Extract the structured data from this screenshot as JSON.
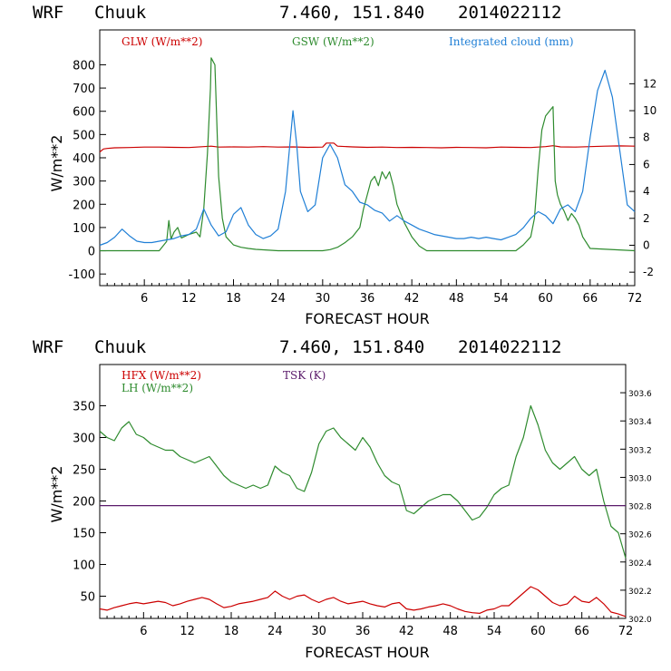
{
  "header_top": {
    "model": "WRF",
    "station": "Chuuk",
    "coords": "7.460, 151.840",
    "datetime": "2014022112"
  },
  "header_bottom": {
    "model": "WRF",
    "station": "Chuuk",
    "coords": "7.460, 151.840",
    "datetime": "2014022112"
  },
  "colors": {
    "red": "#cc0000",
    "green": "#2e8b2e",
    "blue": "#1f7fd6",
    "purple": "#5a1a6a"
  },
  "chart_data": [
    {
      "type": "line",
      "xlabel": "FORECAST HOUR",
      "ylabel": "W/m**2",
      "xlim": [
        0,
        72
      ],
      "ylim": [
        -150,
        950
      ],
      "y2lim": [
        -3,
        16
      ],
      "xticks": [
        6,
        12,
        18,
        24,
        30,
        36,
        42,
        48,
        54,
        60,
        66,
        72
      ],
      "yticks": [
        -100,
        0,
        100,
        200,
        300,
        400,
        500,
        600,
        700,
        800
      ],
      "y2ticks": [
        -2,
        0,
        2,
        4,
        6,
        8,
        10,
        12
      ],
      "series": [
        {
          "name": "GLW (W/m**2)",
          "color": "#cc0000",
          "axis": "left",
          "x": [
            0,
            0.5,
            1,
            2,
            4,
            6,
            8,
            10,
            12,
            13,
            14,
            15,
            16,
            18,
            20,
            22,
            24,
            26,
            28,
            30,
            30.5,
            31.5,
            32,
            34,
            36,
            38,
            40,
            42,
            44,
            46,
            48,
            50,
            52,
            54,
            56,
            58,
            60,
            61,
            62,
            64,
            66,
            68,
            70,
            72
          ],
          "y": [
            425,
            438,
            440,
            443,
            444,
            446,
            446,
            445,
            444,
            446,
            448,
            450,
            446,
            447,
            446,
            448,
            446,
            447,
            445,
            446,
            463,
            463,
            450,
            447,
            445,
            446,
            444,
            445,
            444,
            443,
            445,
            444,
            443,
            446,
            445,
            444,
            448,
            452,
            447,
            446,
            448,
            450,
            451,
            450
          ]
        },
        {
          "name": "GSW (W/m**2)",
          "color": "#2e8b2e",
          "axis": "left",
          "x": [
            0,
            8,
            9,
            9.3,
            9.6,
            10,
            10.5,
            11,
            12,
            13,
            13.5,
            14,
            14.5,
            14.9,
            15,
            15.5,
            16,
            16.5,
            17,
            18,
            19,
            20,
            21,
            22,
            23,
            24,
            30,
            31,
            32,
            33,
            34,
            35,
            35.5,
            36,
            36.5,
            37,
            37.5,
            38,
            38.5,
            39,
            39.5,
            40,
            41,
            42,
            43,
            44,
            56,
            57,
            58,
            58.5,
            59,
            59.5,
            60,
            60.5,
            61,
            61.3,
            61.6,
            62,
            62.5,
            63,
            63.5,
            64,
            64.5,
            65,
            66,
            72
          ],
          "y": [
            0,
            0,
            40,
            130,
            50,
            80,
            100,
            55,
            70,
            80,
            60,
            180,
            420,
            700,
            830,
            800,
            320,
            140,
            60,
            25,
            15,
            10,
            6,
            4,
            2,
            0,
            0,
            5,
            15,
            35,
            60,
            100,
            180,
            240,
            300,
            320,
            280,
            340,
            310,
            340,
            280,
            200,
            120,
            60,
            20,
            0,
            0,
            25,
            60,
            140,
            350,
            520,
            580,
            600,
            620,
            300,
            240,
            200,
            170,
            130,
            160,
            140,
            110,
            60,
            10,
            0
          ]
        },
        {
          "name": "Integrated cloud (mm)",
          "color": "#1f7fd6",
          "axis": "right",
          "x": [
            0,
            1,
            2,
            3,
            4,
            5,
            6,
            7,
            8,
            9,
            10,
            11,
            12,
            13,
            14,
            15,
            16,
            17,
            18,
            19,
            20,
            21,
            22,
            23,
            24,
            25,
            25.5,
            26,
            26.5,
            27,
            28,
            29,
            30,
            31,
            32,
            33,
            34,
            35,
            36,
            37,
            38,
            39,
            40,
            41,
            42,
            43,
            44,
            45,
            46,
            47,
            48,
            49,
            50,
            51,
            52,
            53,
            54,
            55,
            56,
            57,
            58,
            59,
            60,
            61,
            62,
            63,
            64,
            65,
            66,
            67,
            68,
            69,
            70,
            71,
            72
          ],
          "y": [
            0,
            0.2,
            0.6,
            1.2,
            0.7,
            0.3,
            0.2,
            0.2,
            0.3,
            0.4,
            0.5,
            0.7,
            0.8,
            1.2,
            2.7,
            1.5,
            0.7,
            1.0,
            2.3,
            2.8,
            1.5,
            0.8,
            0.5,
            0.7,
            1.2,
            4.0,
            7.0,
            10.0,
            7.5,
            4.0,
            2.5,
            3.0,
            6.5,
            7.5,
            6.5,
            4.5,
            4.0,
            3.2,
            3.0,
            2.6,
            2.4,
            1.8,
            2.2,
            1.8,
            1.5,
            1.2,
            1.0,
            0.8,
            0.7,
            0.6,
            0.5,
            0.5,
            0.6,
            0.5,
            0.6,
            0.5,
            0.4,
            0.6,
            0.8,
            1.3,
            2.0,
            2.5,
            2.2,
            1.6,
            2.7,
            3.0,
            2.5,
            4.0,
            8.0,
            11.5,
            13.0,
            11.0,
            7.0,
            3.0,
            2.5
          ]
        }
      ]
    },
    {
      "type": "line",
      "xlabel": "FORECAST HOUR",
      "ylabel": "W/m**2",
      "xlim": [
        0,
        72
      ],
      "ylim": [
        15,
        415
      ],
      "y2lim": [
        302.0,
        303.8
      ],
      "xticks": [
        6,
        12,
        18,
        24,
        30,
        36,
        42,
        48,
        54,
        60,
        66,
        72
      ],
      "yticks": [
        50,
        100,
        150,
        200,
        250,
        300,
        350
      ],
      "y2ticks": [
        "302.0",
        "302.2",
        "302.4",
        "302.6",
        "302.8",
        "303.0",
        "303.2",
        "303.4",
        "303.6"
      ],
      "series": [
        {
          "name": "HFX (W/m**2)",
          "color": "#cc0000",
          "axis": "left",
          "x": [
            0,
            1,
            2,
            3,
            4,
            5,
            6,
            7,
            8,
            9,
            10,
            11,
            12,
            13,
            14,
            15,
            16,
            17,
            18,
            19,
            20,
            21,
            22,
            23,
            24,
            25,
            26,
            27,
            28,
            29,
            30,
            31,
            32,
            33,
            34,
            35,
            36,
            37,
            38,
            39,
            40,
            41,
            42,
            43,
            44,
            45,
            46,
            47,
            48,
            49,
            50,
            51,
            52,
            53,
            54,
            55,
            56,
            57,
            58,
            59,
            60,
            61,
            62,
            63,
            64,
            65,
            66,
            67,
            68,
            69,
            70,
            71,
            72
          ],
          "y": [
            30,
            28,
            32,
            35,
            38,
            40,
            38,
            40,
            42,
            40,
            35,
            38,
            42,
            45,
            48,
            45,
            38,
            32,
            34,
            38,
            40,
            42,
            45,
            48,
            58,
            50,
            45,
            50,
            52,
            45,
            40,
            45,
            48,
            42,
            38,
            40,
            42,
            38,
            35,
            33,
            38,
            40,
            30,
            28,
            30,
            33,
            35,
            38,
            35,
            30,
            26,
            24,
            23,
            28,
            30,
            35,
            35,
            45,
            55,
            65,
            60,
            50,
            40,
            35,
            38,
            50,
            42,
            40,
            48,
            38,
            25,
            22,
            18
          ]
        },
        {
          "name": "LH (W/m**2)",
          "color": "#2e8b2e",
          "axis": "left",
          "x": [
            0,
            1,
            2,
            3,
            4,
            5,
            6,
            7,
            8,
            9,
            10,
            11,
            12,
            13,
            14,
            15,
            16,
            17,
            18,
            19,
            20,
            21,
            22,
            23,
            24,
            25,
            26,
            27,
            28,
            29,
            30,
            31,
            32,
            33,
            34,
            35,
            36,
            37,
            38,
            39,
            40,
            41,
            42,
            43,
            44,
            45,
            46,
            47,
            48,
            49,
            50,
            51,
            52,
            53,
            54,
            55,
            56,
            57,
            58,
            59,
            60,
            61,
            62,
            63,
            64,
            65,
            66,
            67,
            68,
            69,
            70,
            71,
            72
          ],
          "y": [
            310,
            300,
            295,
            315,
            325,
            305,
            300,
            290,
            285,
            280,
            280,
            270,
            265,
            260,
            265,
            270,
            255,
            240,
            230,
            225,
            220,
            225,
            220,
            225,
            255,
            245,
            240,
            220,
            215,
            245,
            290,
            310,
            315,
            300,
            290,
            280,
            300,
            285,
            260,
            240,
            230,
            225,
            185,
            180,
            190,
            200,
            205,
            210,
            210,
            200,
            185,
            170,
            175,
            190,
            210,
            220,
            225,
            270,
            300,
            350,
            320,
            280,
            260,
            250,
            260,
            270,
            250,
            240,
            250,
            200,
            160,
            150,
            110
          ]
        },
        {
          "name": "TSK (K)",
          "color": "#5a1a6a",
          "axis": "right",
          "x": [
            0,
            72
          ],
          "y": [
            302.8,
            302.8
          ]
        }
      ]
    }
  ]
}
